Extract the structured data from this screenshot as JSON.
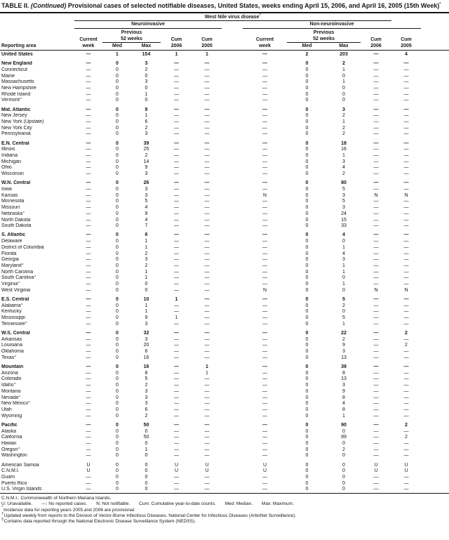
{
  "colors": {
    "ink": "#161616",
    "background": "#ffffff"
  },
  "title": {
    "label": "TABLE II.",
    "continued": "(Continued)",
    "text": "Provisional cases of selected notifiable diseases, United States, weeks ending April 15, 2006, and April 16, 2005 (15th Week)",
    "marker": "*"
  },
  "table": {
    "disease_label": "West Nile virus disease",
    "disease_marker": "†",
    "groups": [
      "Neuroinvasive",
      "Non-neuroinvasive"
    ],
    "reporting_area_label": "Reporting area",
    "columns": {
      "current": "Current",
      "week": "week",
      "previous": "Previous",
      "weeks52": "52 weeks",
      "med": "Med",
      "max": "Max",
      "cum": "Cum",
      "y2006": "2006",
      "y2005": "2005"
    },
    "rows": [
      {
        "area": "United States",
        "bold": true,
        "gap": false,
        "values": [
          "—",
          "1",
          "154",
          "1",
          "1",
          "—",
          "2",
          "203",
          "—",
          "4"
        ]
      },
      {
        "area": "New England",
        "bold": true,
        "gap": true,
        "values": [
          "—",
          "0",
          "3",
          "—",
          "—",
          "—",
          "0",
          "2",
          "—",
          "—"
        ]
      },
      {
        "area": "Connecticut",
        "bold": false,
        "gap": false,
        "values": [
          "—",
          "0",
          "2",
          "—",
          "—",
          "—",
          "0",
          "1",
          "—",
          "—"
        ]
      },
      {
        "area": "Maine",
        "bold": false,
        "gap": false,
        "values": [
          "—",
          "0",
          "0",
          "—",
          "—",
          "—",
          "0",
          "0",
          "—",
          "—"
        ]
      },
      {
        "area": "Massachusetts",
        "bold": false,
        "gap": false,
        "values": [
          "—",
          "0",
          "3",
          "—",
          "—",
          "—",
          "0",
          "1",
          "—",
          "—"
        ]
      },
      {
        "area": "New Hampshire",
        "bold": false,
        "gap": false,
        "values": [
          "—",
          "0",
          "0",
          "—",
          "—",
          "—",
          "0",
          "0",
          "—",
          "—"
        ]
      },
      {
        "area": "Rhode Island",
        "bold": false,
        "gap": false,
        "values": [
          "—",
          "0",
          "1",
          "—",
          "—",
          "—",
          "0",
          "0",
          "—",
          "—"
        ]
      },
      {
        "area": "Vermont§",
        "bold": false,
        "gap": false,
        "values": [
          "—",
          "0",
          "0",
          "—",
          "—",
          "—",
          "0",
          "0",
          "—",
          "—"
        ]
      },
      {
        "area": "Mid. Atlantic",
        "bold": true,
        "gap": true,
        "values": [
          "—",
          "0",
          "9",
          "—",
          "—",
          "—",
          "0",
          "3",
          "—",
          "—"
        ]
      },
      {
        "area": "New Jersey",
        "bold": false,
        "gap": false,
        "values": [
          "—",
          "0",
          "1",
          "—",
          "—",
          "—",
          "0",
          "2",
          "—",
          "—"
        ]
      },
      {
        "area": "New York (Upstate)",
        "bold": false,
        "gap": false,
        "values": [
          "—",
          "0",
          "6",
          "—",
          "—",
          "—",
          "0",
          "1",
          "—",
          "—"
        ]
      },
      {
        "area": "New York City",
        "bold": false,
        "gap": false,
        "values": [
          "—",
          "0",
          "2",
          "—",
          "—",
          "—",
          "0",
          "2",
          "—",
          "—"
        ]
      },
      {
        "area": "Pennsylvania",
        "bold": false,
        "gap": false,
        "values": [
          "—",
          "0",
          "3",
          "—",
          "—",
          "—",
          "0",
          "2",
          "—",
          "—"
        ]
      },
      {
        "area": "E.N. Central",
        "bold": true,
        "gap": true,
        "values": [
          "—",
          "0",
          "39",
          "—",
          "—",
          "—",
          "0",
          "18",
          "—",
          "—"
        ]
      },
      {
        "area": "Illinois",
        "bold": false,
        "gap": false,
        "values": [
          "—",
          "0",
          "25",
          "—",
          "—",
          "—",
          "0",
          "16",
          "—",
          "—"
        ]
      },
      {
        "area": "Indiana",
        "bold": false,
        "gap": false,
        "values": [
          "—",
          "0",
          "2",
          "—",
          "—",
          "—",
          "0",
          "1",
          "—",
          "—"
        ]
      },
      {
        "area": "Michigan",
        "bold": false,
        "gap": false,
        "values": [
          "—",
          "0",
          "14",
          "—",
          "—",
          "—",
          "0",
          "3",
          "—",
          "—"
        ]
      },
      {
        "area": "Ohio",
        "bold": false,
        "gap": false,
        "values": [
          "—",
          "0",
          "9",
          "—",
          "—",
          "—",
          "0",
          "4",
          "—",
          "—"
        ]
      },
      {
        "area": "Wisconsin",
        "bold": false,
        "gap": false,
        "values": [
          "—",
          "0",
          "3",
          "—",
          "—",
          "—",
          "0",
          "2",
          "—",
          "—"
        ]
      },
      {
        "area": "W.N. Central",
        "bold": true,
        "gap": true,
        "values": [
          "—",
          "0",
          "26",
          "—",
          "—",
          "—",
          "0",
          "80",
          "—",
          "—"
        ]
      },
      {
        "area": "Iowa",
        "bold": false,
        "gap": false,
        "values": [
          "—",
          "0",
          "3",
          "—",
          "—",
          "—",
          "0",
          "5",
          "—",
          "—"
        ]
      },
      {
        "area": "Kansas",
        "bold": false,
        "gap": false,
        "values": [
          "—",
          "0",
          "3",
          "—",
          "—",
          "N",
          "0",
          "3",
          "N",
          "N"
        ]
      },
      {
        "area": "Minnesota",
        "bold": false,
        "gap": false,
        "values": [
          "—",
          "0",
          "5",
          "—",
          "—",
          "—",
          "0",
          "5",
          "—",
          "—"
        ]
      },
      {
        "area": "Missouri",
        "bold": false,
        "gap": false,
        "values": [
          "—",
          "0",
          "4",
          "—",
          "—",
          "—",
          "0",
          "3",
          "—",
          "—"
        ]
      },
      {
        "area": "Nebraska§",
        "bold": false,
        "gap": false,
        "values": [
          "—",
          "0",
          "9",
          "—",
          "—",
          "—",
          "0",
          "24",
          "—",
          "—"
        ]
      },
      {
        "area": "North Dakota",
        "bold": false,
        "gap": false,
        "values": [
          "—",
          "0",
          "4",
          "—",
          "—",
          "—",
          "0",
          "15",
          "—",
          "—"
        ]
      },
      {
        "area": "South Dakota",
        "bold": false,
        "gap": false,
        "values": [
          "—",
          "0",
          "7",
          "—",
          "—",
          "—",
          "0",
          "33",
          "—",
          "—"
        ]
      },
      {
        "area": "S. Atlantic",
        "bold": true,
        "gap": true,
        "values": [
          "—",
          "0",
          "6",
          "—",
          "—",
          "—",
          "0",
          "4",
          "—",
          "—"
        ]
      },
      {
        "area": "Delaware",
        "bold": false,
        "gap": false,
        "values": [
          "—",
          "0",
          "1",
          "—",
          "—",
          "—",
          "0",
          "0",
          "—",
          "—"
        ]
      },
      {
        "area": "District of Columbia",
        "bold": false,
        "gap": false,
        "values": [
          "—",
          "0",
          "1",
          "—",
          "—",
          "—",
          "0",
          "1",
          "—",
          "—"
        ]
      },
      {
        "area": "Florida",
        "bold": false,
        "gap": false,
        "values": [
          "—",
          "0",
          "2",
          "—",
          "—",
          "—",
          "0",
          "4",
          "—",
          "—"
        ]
      },
      {
        "area": "Georgia",
        "bold": false,
        "gap": false,
        "values": [
          "—",
          "0",
          "3",
          "—",
          "—",
          "—",
          "0",
          "3",
          "—",
          "—"
        ]
      },
      {
        "area": "Maryland§",
        "bold": false,
        "gap": false,
        "values": [
          "—",
          "0",
          "2",
          "—",
          "—",
          "—",
          "0",
          "1",
          "—",
          "—"
        ]
      },
      {
        "area": "North Carolina",
        "bold": false,
        "gap": false,
        "values": [
          "—",
          "0",
          "1",
          "—",
          "—",
          "—",
          "0",
          "1",
          "—",
          "—"
        ]
      },
      {
        "area": "South Carolina§",
        "bold": false,
        "gap": false,
        "values": [
          "—",
          "0",
          "1",
          "—",
          "—",
          "—",
          "0",
          "0",
          "—",
          "—"
        ]
      },
      {
        "area": "Virginia§",
        "bold": false,
        "gap": false,
        "values": [
          "—",
          "0",
          "0",
          "—",
          "—",
          "—",
          "0",
          "1",
          "—",
          "—"
        ]
      },
      {
        "area": "West Virginia",
        "bold": false,
        "gap": false,
        "values": [
          "—",
          "0",
          "0",
          "—",
          "—",
          "N",
          "0",
          "0",
          "N",
          "N"
        ]
      },
      {
        "area": "E.S. Central",
        "bold": true,
        "gap": true,
        "values": [
          "—",
          "0",
          "10",
          "1",
          "—",
          "—",
          "0",
          "5",
          "—",
          "—"
        ]
      },
      {
        "area": "Alabama§",
        "bold": false,
        "gap": false,
        "values": [
          "—",
          "0",
          "1",
          "—",
          "—",
          "—",
          "0",
          "2",
          "—",
          "—"
        ]
      },
      {
        "area": "Kentucky",
        "bold": false,
        "gap": false,
        "values": [
          "—",
          "0",
          "1",
          "—",
          "—",
          "—",
          "0",
          "0",
          "—",
          "—"
        ]
      },
      {
        "area": "Mississippi",
        "bold": false,
        "gap": false,
        "values": [
          "—",
          "0",
          "9",
          "1",
          "—",
          "—",
          "0",
          "5",
          "—",
          "—"
        ]
      },
      {
        "area": "Tennessee§",
        "bold": false,
        "gap": false,
        "values": [
          "—",
          "0",
          "3",
          "—",
          "—",
          "—",
          "0",
          "1",
          "—",
          "—"
        ]
      },
      {
        "area": "W.S. Central",
        "bold": true,
        "gap": true,
        "values": [
          "—",
          "0",
          "32",
          "—",
          "—",
          "—",
          "0",
          "22",
          "—",
          "2"
        ]
      },
      {
        "area": "Arkansas",
        "bold": false,
        "gap": false,
        "values": [
          "—",
          "0",
          "3",
          "—",
          "—",
          "—",
          "0",
          "2",
          "—",
          "—"
        ]
      },
      {
        "area": "Louisiana",
        "bold": false,
        "gap": false,
        "values": [
          "—",
          "0",
          "20",
          "—",
          "—",
          "—",
          "0",
          "9",
          "—",
          "2"
        ]
      },
      {
        "area": "Oklahoma",
        "bold": false,
        "gap": false,
        "values": [
          "—",
          "0",
          "6",
          "—",
          "—",
          "—",
          "0",
          "3",
          "—",
          "—"
        ]
      },
      {
        "area": "Texas§",
        "bold": false,
        "gap": false,
        "values": [
          "—",
          "0",
          "16",
          "—",
          "—",
          "—",
          "0",
          "13",
          "—",
          "—"
        ]
      },
      {
        "area": "Mountain",
        "bold": true,
        "gap": true,
        "values": [
          "—",
          "0",
          "16",
          "—",
          "1",
          "—",
          "0",
          "39",
          "—",
          "—"
        ]
      },
      {
        "area": "Arizona",
        "bold": false,
        "gap": false,
        "values": [
          "—",
          "0",
          "8",
          "—",
          "1",
          "—",
          "0",
          "8",
          "—",
          "—"
        ]
      },
      {
        "area": "Colorado",
        "bold": false,
        "gap": false,
        "values": [
          "—",
          "0",
          "5",
          "—",
          "—",
          "—",
          "0",
          "13",
          "—",
          "—"
        ]
      },
      {
        "area": "Idaho§",
        "bold": false,
        "gap": false,
        "values": [
          "—",
          "0",
          "2",
          "—",
          "—",
          "—",
          "0",
          "3",
          "—",
          "—"
        ]
      },
      {
        "area": "Montana",
        "bold": false,
        "gap": false,
        "values": [
          "—",
          "0",
          "3",
          "—",
          "—",
          "—",
          "0",
          "9",
          "—",
          "—"
        ]
      },
      {
        "area": "Nevada§",
        "bold": false,
        "gap": false,
        "values": [
          "—",
          "0",
          "3",
          "—",
          "—",
          "—",
          "0",
          "8",
          "—",
          "—"
        ]
      },
      {
        "area": "New Mexico§",
        "bold": false,
        "gap": false,
        "values": [
          "—",
          "0",
          "3",
          "—",
          "—",
          "—",
          "0",
          "4",
          "—",
          "—"
        ]
      },
      {
        "area": "Utah",
        "bold": false,
        "gap": false,
        "values": [
          "—",
          "0",
          "6",
          "—",
          "—",
          "—",
          "0",
          "8",
          "—",
          "—"
        ]
      },
      {
        "area": "Wyoming",
        "bold": false,
        "gap": false,
        "values": [
          "—",
          "0",
          "2",
          "—",
          "—",
          "—",
          "0",
          "1",
          "—",
          "—"
        ]
      },
      {
        "area": "Pacific",
        "bold": true,
        "gap": true,
        "values": [
          "—",
          "0",
          "50",
          "—",
          "—",
          "—",
          "0",
          "90",
          "—",
          "2"
        ]
      },
      {
        "area": "Alaska",
        "bold": false,
        "gap": false,
        "values": [
          "—",
          "0",
          "0",
          "—",
          "—",
          "—",
          "0",
          "0",
          "—",
          "—"
        ]
      },
      {
        "area": "California",
        "bold": false,
        "gap": false,
        "values": [
          "—",
          "0",
          "50",
          "—",
          "—",
          "—",
          "0",
          "89",
          "—",
          "2"
        ]
      },
      {
        "area": "Hawaii",
        "bold": false,
        "gap": false,
        "values": [
          "—",
          "0",
          "0",
          "—",
          "—",
          "—",
          "0",
          "0",
          "—",
          "—"
        ]
      },
      {
        "area": "Oregon§",
        "bold": false,
        "gap": false,
        "values": [
          "—",
          "0",
          "1",
          "—",
          "—",
          "—",
          "0",
          "2",
          "—",
          "—"
        ]
      },
      {
        "area": "Washington",
        "bold": false,
        "gap": false,
        "values": [
          "—",
          "0",
          "0",
          "—",
          "—",
          "—",
          "0",
          "0",
          "—",
          "—"
        ]
      },
      {
        "area": "American Samoa",
        "bold": false,
        "gap": true,
        "values": [
          "U",
          "0",
          "0",
          "U",
          "U",
          "U",
          "0",
          "0",
          "U",
          "U"
        ]
      },
      {
        "area": "C.N.M.I.",
        "bold": false,
        "gap": false,
        "values": [
          "U",
          "0",
          "0",
          "U",
          "U",
          "U",
          "0",
          "0",
          "U",
          "U"
        ]
      },
      {
        "area": "Guam",
        "bold": false,
        "gap": false,
        "values": [
          "—",
          "0",
          "0",
          "—",
          "—",
          "—",
          "0",
          "0",
          "—",
          "—"
        ]
      },
      {
        "area": "Puerto Rico",
        "bold": false,
        "gap": false,
        "values": [
          "—",
          "0",
          "0",
          "—",
          "—",
          "—",
          "0",
          "0",
          "—",
          "—"
        ]
      },
      {
        "area": "U.S. Virgin Islands",
        "bold": false,
        "gap": false,
        "values": [
          "—",
          "0",
          "0",
          "—",
          "—",
          "—",
          "0",
          "0",
          "—",
          "—"
        ]
      }
    ]
  },
  "footnotes": {
    "cnmi": "C.N.M.I.: Commonwealth of Northern Mariana Islands.",
    "legend": [
      "U: Unavailable.",
      "—: No reported cases.",
      "N: Not notifiable.",
      "Cum: Cumulative year-to-date counts.",
      "Med: Median.",
      "Max: Maximum."
    ],
    "notes": [
      {
        "marker": "*",
        "text": "Incidence data for reporting years 2005 and 2006 are provisional."
      },
      {
        "marker": "†",
        "text": "Updated weekly from reports to the Division of Vector-Borne Infectious Diseases, National Center for Infectious Diseases (ArboNet Surveillance)."
      },
      {
        "marker": "§",
        "text": "Contains data reported through the National Electronic Disease Surveillance System (NEDSS)."
      }
    ]
  }
}
